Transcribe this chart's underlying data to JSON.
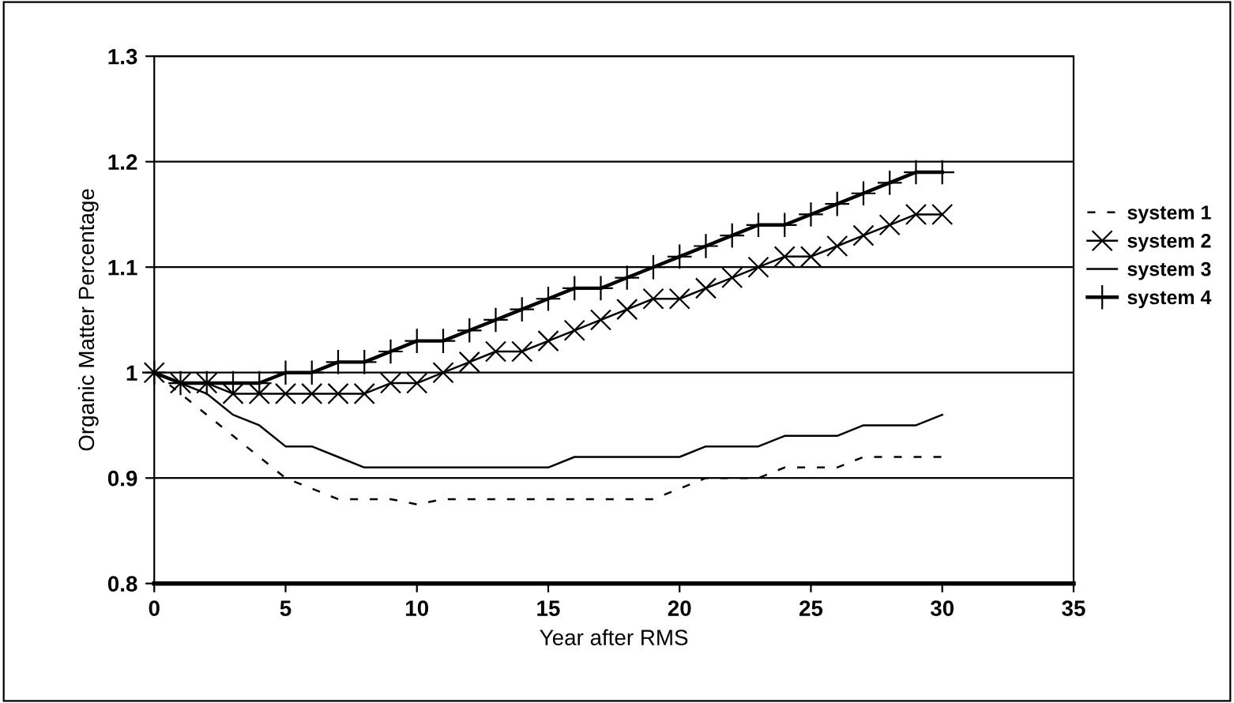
{
  "chart_data": {
    "type": "line",
    "xlabel": "Year after RMS",
    "ylabel": "Organic Matter Percentage",
    "x": [
      0,
      1,
      2,
      3,
      4,
      5,
      6,
      7,
      8,
      9,
      10,
      11,
      12,
      13,
      14,
      15,
      16,
      17,
      18,
      19,
      20,
      21,
      22,
      23,
      24,
      25,
      26,
      27,
      28,
      29,
      30
    ],
    "series": [
      {
        "name": "system 1",
        "marker": "none",
        "line_style": "dashed",
        "color": "#000000",
        "values": [
          1.0,
          0.98,
          0.96,
          0.94,
          0.92,
          0.9,
          0.89,
          0.88,
          0.88,
          0.88,
          0.875,
          0.88,
          0.88,
          0.88,
          0.88,
          0.88,
          0.88,
          0.88,
          0.88,
          0.88,
          0.89,
          0.9,
          0.9,
          0.9,
          0.91,
          0.91,
          0.91,
          0.92,
          0.92,
          0.92,
          0.92
        ]
      },
      {
        "name": "system 2",
        "marker": "cross",
        "color": "#000000",
        "values": [
          1.0,
          0.99,
          0.99,
          0.98,
          0.98,
          0.98,
          0.98,
          0.98,
          0.98,
          0.99,
          0.99,
          1.0,
          1.01,
          1.02,
          1.02,
          1.03,
          1.04,
          1.05,
          1.06,
          1.07,
          1.07,
          1.08,
          1.09,
          1.1,
          1.11,
          1.11,
          1.12,
          1.13,
          1.14,
          1.15,
          1.15
        ]
      },
      {
        "name": "system 3",
        "marker": "none",
        "color": "#000000",
        "values": [
          1.0,
          0.99,
          0.98,
          0.96,
          0.95,
          0.93,
          0.93,
          0.92,
          0.91,
          0.91,
          0.91,
          0.91,
          0.91,
          0.91,
          0.91,
          0.91,
          0.92,
          0.92,
          0.92,
          0.92,
          0.92,
          0.93,
          0.93,
          0.93,
          0.94,
          0.94,
          0.94,
          0.95,
          0.95,
          0.95,
          0.96
        ]
      },
      {
        "name": "system 4",
        "marker": "plus",
        "color": "#000000",
        "values": [
          1.0,
          0.99,
          0.99,
          0.99,
          0.99,
          1.0,
          1.0,
          1.01,
          1.01,
          1.02,
          1.03,
          1.03,
          1.04,
          1.05,
          1.06,
          1.07,
          1.08,
          1.08,
          1.09,
          1.1,
          1.11,
          1.12,
          1.13,
          1.14,
          1.14,
          1.15,
          1.16,
          1.17,
          1.18,
          1.19,
          1.19
        ]
      }
    ],
    "xlim": [
      0,
      35
    ],
    "xticks": [
      0,
      5,
      10,
      15,
      20,
      25,
      30,
      35
    ],
    "ylim": [
      0.8,
      1.3
    ],
    "yticks": [
      0.8,
      0.9,
      1,
      1.1,
      1.2,
      1.3
    ],
    "grid": "y",
    "legend": "right"
  }
}
